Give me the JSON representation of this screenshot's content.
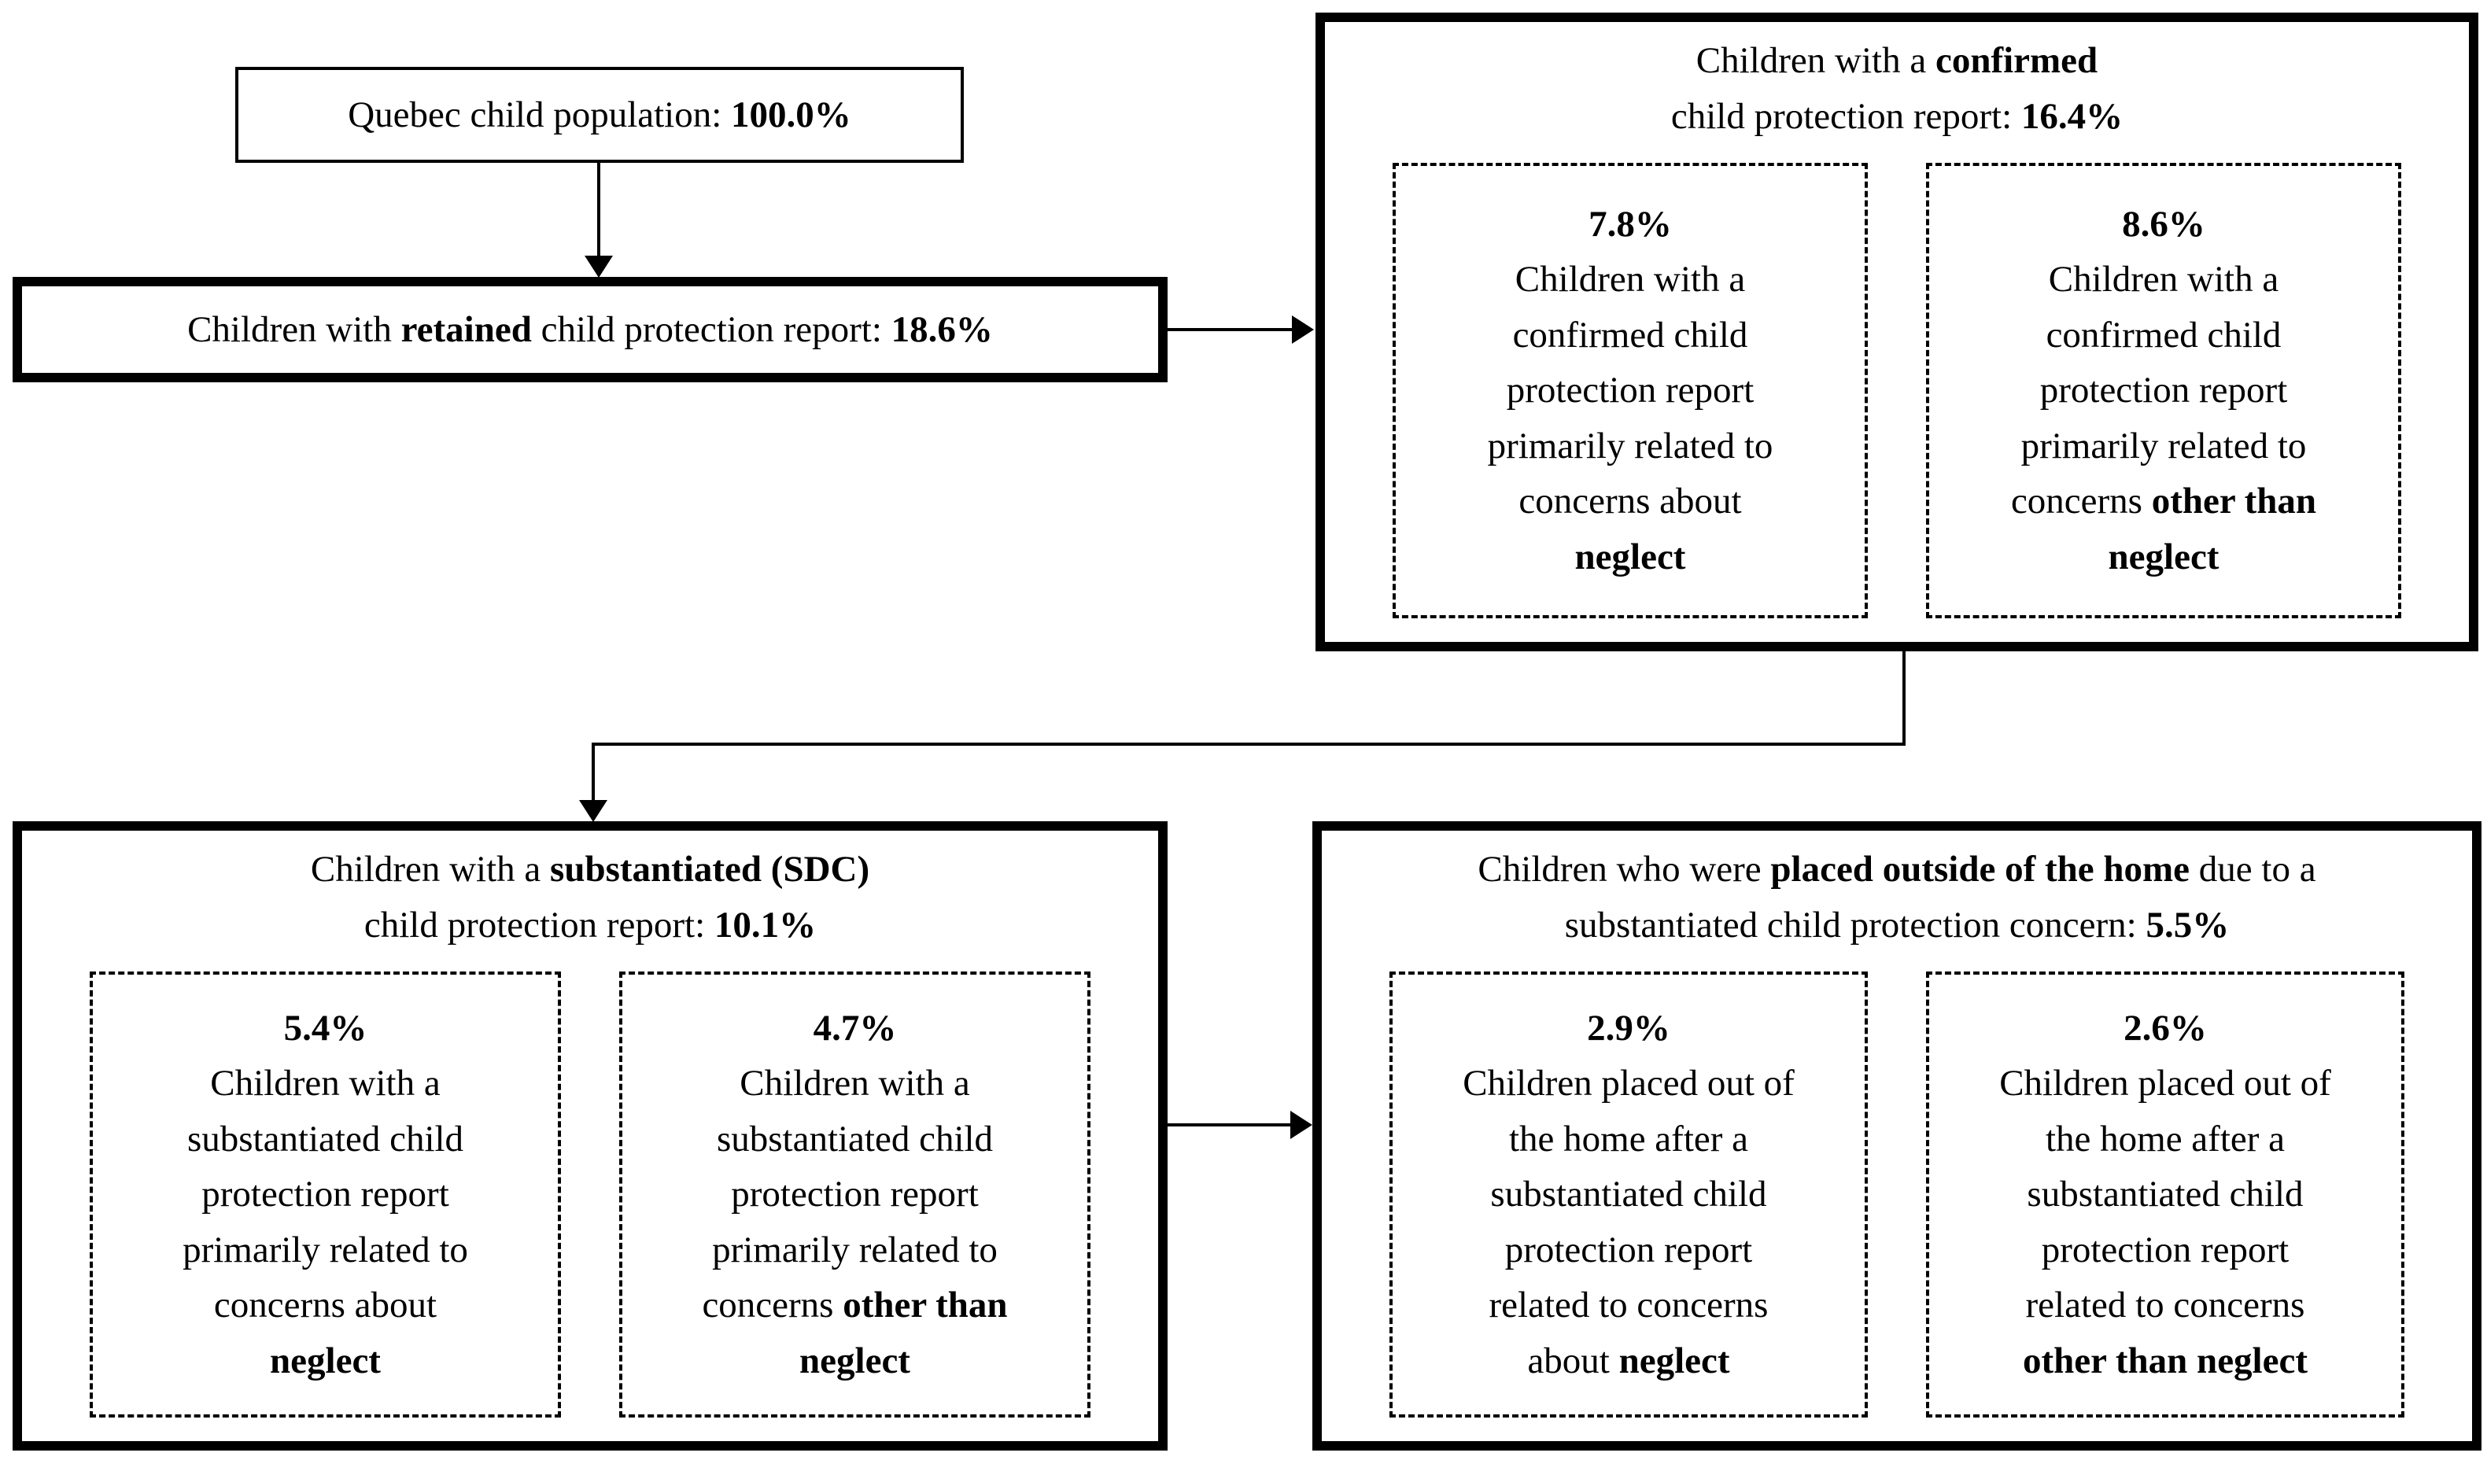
{
  "figure": {
    "background_color": "#ffffff",
    "line_color": "#000000",
    "text_color": "#000000"
  },
  "boxes": {
    "quebec": {
      "percent": "100.0%",
      "segments": [
        {
          "text": "Quebec child population: "
        },
        {
          "text": "100.0%",
          "bold": true
        }
      ]
    },
    "retained": {
      "percent": "18.6%",
      "segments": [
        {
          "text": "Children with "
        },
        {
          "text": "retained",
          "bold": true
        },
        {
          "text": " child protection report: "
        },
        {
          "text": "18.6%",
          "bold": true
        }
      ]
    },
    "confirmed": {
      "percent": "16.4%",
      "title_segments": [
        {
          "text": "Children with a "
        },
        {
          "text": "confirmed",
          "bold": true
        },
        {
          "text": "\nchild protection report: "
        },
        {
          "text": "16.4%",
          "bold": true
        }
      ],
      "neglect": {
        "percent": "7.8%",
        "segments": [
          {
            "text": "7.8%",
            "bold": true
          },
          {
            "text": "\nChildren with a\nconfirmed child\nprotection report\nprimarily related to\nconcerns about\n"
          },
          {
            "text": "neglect",
            "bold": true
          }
        ]
      },
      "other": {
        "percent": "8.6%",
        "segments": [
          {
            "text": "8.6%",
            "bold": true
          },
          {
            "text": "\nChildren with a\nconfirmed child\nprotection report\nprimarily related to\nconcerns "
          },
          {
            "text": "other than\nneglect",
            "bold": true
          }
        ]
      }
    },
    "substantiated": {
      "percent": "10.1%",
      "title_segments": [
        {
          "text": "Children with a "
        },
        {
          "text": "substantiated (SDC)",
          "bold": true
        },
        {
          "text": "\nchild protection report: "
        },
        {
          "text": "10.1%",
          "bold": true
        }
      ],
      "neglect": {
        "percent": "5.4%",
        "segments": [
          {
            "text": "5.4%",
            "bold": true
          },
          {
            "text": "\nChildren with a\nsubstantiated child\nprotection report\nprimarily related to\nconcerns about\n"
          },
          {
            "text": "neglect",
            "bold": true
          }
        ]
      },
      "other": {
        "percent": "4.7%",
        "segments": [
          {
            "text": "4.7%",
            "bold": true
          },
          {
            "text": "\nChildren with a\nsubstantiated child\nprotection report\nprimarily related to\nconcerns "
          },
          {
            "text": "other than\nneglect",
            "bold": true
          }
        ]
      }
    },
    "placed": {
      "percent": "5.5%",
      "title_segments": [
        {
          "text": "Children who were "
        },
        {
          "text": "placed outside of the home",
          "bold": true
        },
        {
          "text": " due to a\nsubstantiated child protection concern: "
        },
        {
          "text": "5.5%",
          "bold": true
        }
      ],
      "neglect": {
        "percent": "2.9%",
        "segments": [
          {
            "text": "2.9%",
            "bold": true
          },
          {
            "text": "\nChildren placed out of\nthe home after a\nsubstantiated child\nprotection report\nrelated to concerns\nabout "
          },
          {
            "text": "neglect",
            "bold": true
          }
        ]
      },
      "other": {
        "percent": "2.6%",
        "segments": [
          {
            "text": "2.6%",
            "bold": true
          },
          {
            "text": "\nChildren placed out of\nthe home after a\nsubstantiated child\nprotection report\nrelated to concerns\n"
          },
          {
            "text": "other than neglect",
            "bold": true
          }
        ]
      }
    }
  }
}
